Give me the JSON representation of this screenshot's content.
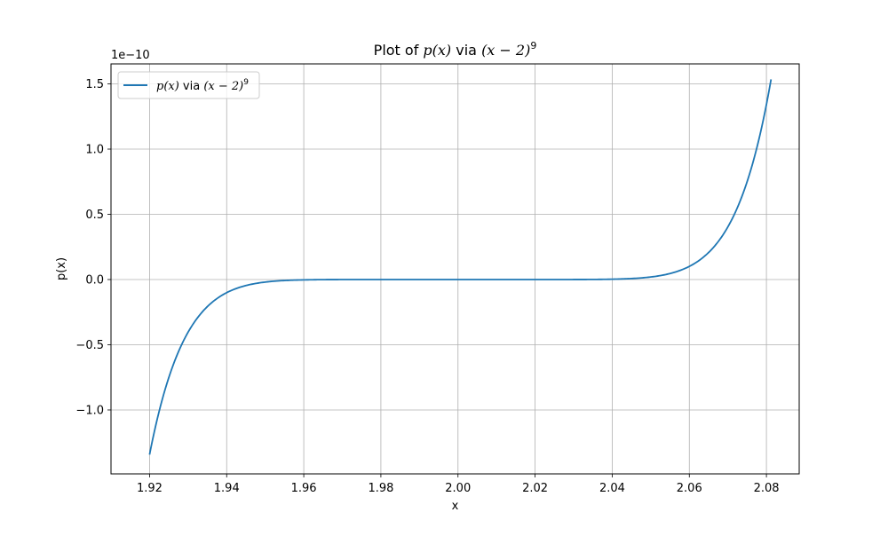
{
  "chart_data": {
    "type": "line",
    "title_parts": {
      "plain": "Plot of ",
      "math1": "p(x)",
      "mid": " via ",
      "math2": "(x − 2)",
      "sup": "9"
    },
    "xlabel": "x",
    "ylabel": "p(x)",
    "offset_text": "1e−10",
    "xlim": [
      1.91,
      2.0885
    ],
    "ylim": [
      -1.49e-10,
      1.6532e-10
    ],
    "x_ticks": [
      1.92,
      1.94,
      1.96,
      1.98,
      2.0,
      2.02,
      2.04,
      2.06,
      2.08
    ],
    "x_tick_labels": [
      "1.92",
      "1.94",
      "1.96",
      "1.98",
      "2.00",
      "2.02",
      "2.04",
      "2.06",
      "2.08"
    ],
    "y_ticks": [
      -1e-10,
      -5e-11,
      0.0,
      5e-11,
      1e-10,
      1.5e-10
    ],
    "y_tick_labels": [
      "−1.0",
      "−0.5",
      "0.0",
      "0.5",
      "1.0",
      "1.5"
    ],
    "grid": true,
    "legend_placement": "top-left",
    "series": [
      {
        "name_parts": {
          "math1": "p(x)",
          "mid": " via ",
          "math2": "(x − 2)",
          "sup": "9"
        },
        "color": "#1f77b4",
        "function": "(x-2)^9",
        "x_range": [
          1.92,
          2.0812
        ]
      }
    ]
  }
}
